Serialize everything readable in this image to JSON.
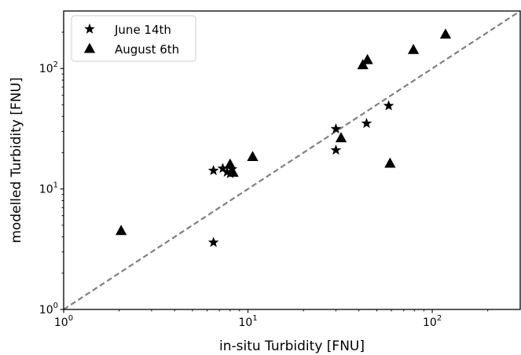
{
  "chart_data": {
    "type": "scatter",
    "title": "",
    "xlabel": "in-situ Turbidity [FNU]",
    "ylabel": "modelled Turbidity [FNU]",
    "xscale": "log",
    "yscale": "log",
    "xlim": [
      1,
      300
    ],
    "ylim": [
      1,
      300
    ],
    "x_ticks": [
      {
        "value": 1,
        "base": "10",
        "exp": "0"
      },
      {
        "value": 10,
        "base": "10",
        "exp": "1"
      },
      {
        "value": 100,
        "base": "10",
        "exp": "2"
      }
    ],
    "y_ticks": [
      {
        "value": 1,
        "base": "10",
        "exp": "0"
      },
      {
        "value": 10,
        "base": "10",
        "exp": "1"
      },
      {
        "value": 100,
        "base": "10",
        "exp": "2"
      }
    ],
    "grid": false,
    "legend_position": "top-left",
    "reference_line": {
      "style": "dashed",
      "color": "#808080",
      "from": [
        1,
        1
      ],
      "to": [
        300,
        300
      ]
    },
    "series": [
      {
        "name": "June 14th",
        "marker": "star",
        "color": "#000000",
        "points": [
          {
            "x": 6.5,
            "y": 14.2
          },
          {
            "x": 7.3,
            "y": 14.8
          },
          {
            "x": 7.7,
            "y": 13.8
          },
          {
            "x": 8.0,
            "y": 13.4
          },
          {
            "x": 8.2,
            "y": 14.6
          },
          {
            "x": 6.5,
            "y": 3.6
          },
          {
            "x": 30.0,
            "y": 31.5
          },
          {
            "x": 30.0,
            "y": 21.0
          },
          {
            "x": 44.0,
            "y": 35.0
          },
          {
            "x": 58.0,
            "y": 49.0
          }
        ]
      },
      {
        "name": "August 6th",
        "marker": "triangle",
        "color": "#000000",
        "points": [
          {
            "x": 2.05,
            "y": 4.5
          },
          {
            "x": 8.0,
            "y": 16.0
          },
          {
            "x": 8.3,
            "y": 13.7
          },
          {
            "x": 10.6,
            "y": 18.5
          },
          {
            "x": 32.0,
            "y": 26.5
          },
          {
            "x": 42.0,
            "y": 107.0
          },
          {
            "x": 44.5,
            "y": 118.0
          },
          {
            "x": 59.0,
            "y": 16.3
          },
          {
            "x": 79.0,
            "y": 143.0
          },
          {
            "x": 118.0,
            "y": 192.0
          }
        ]
      }
    ]
  }
}
